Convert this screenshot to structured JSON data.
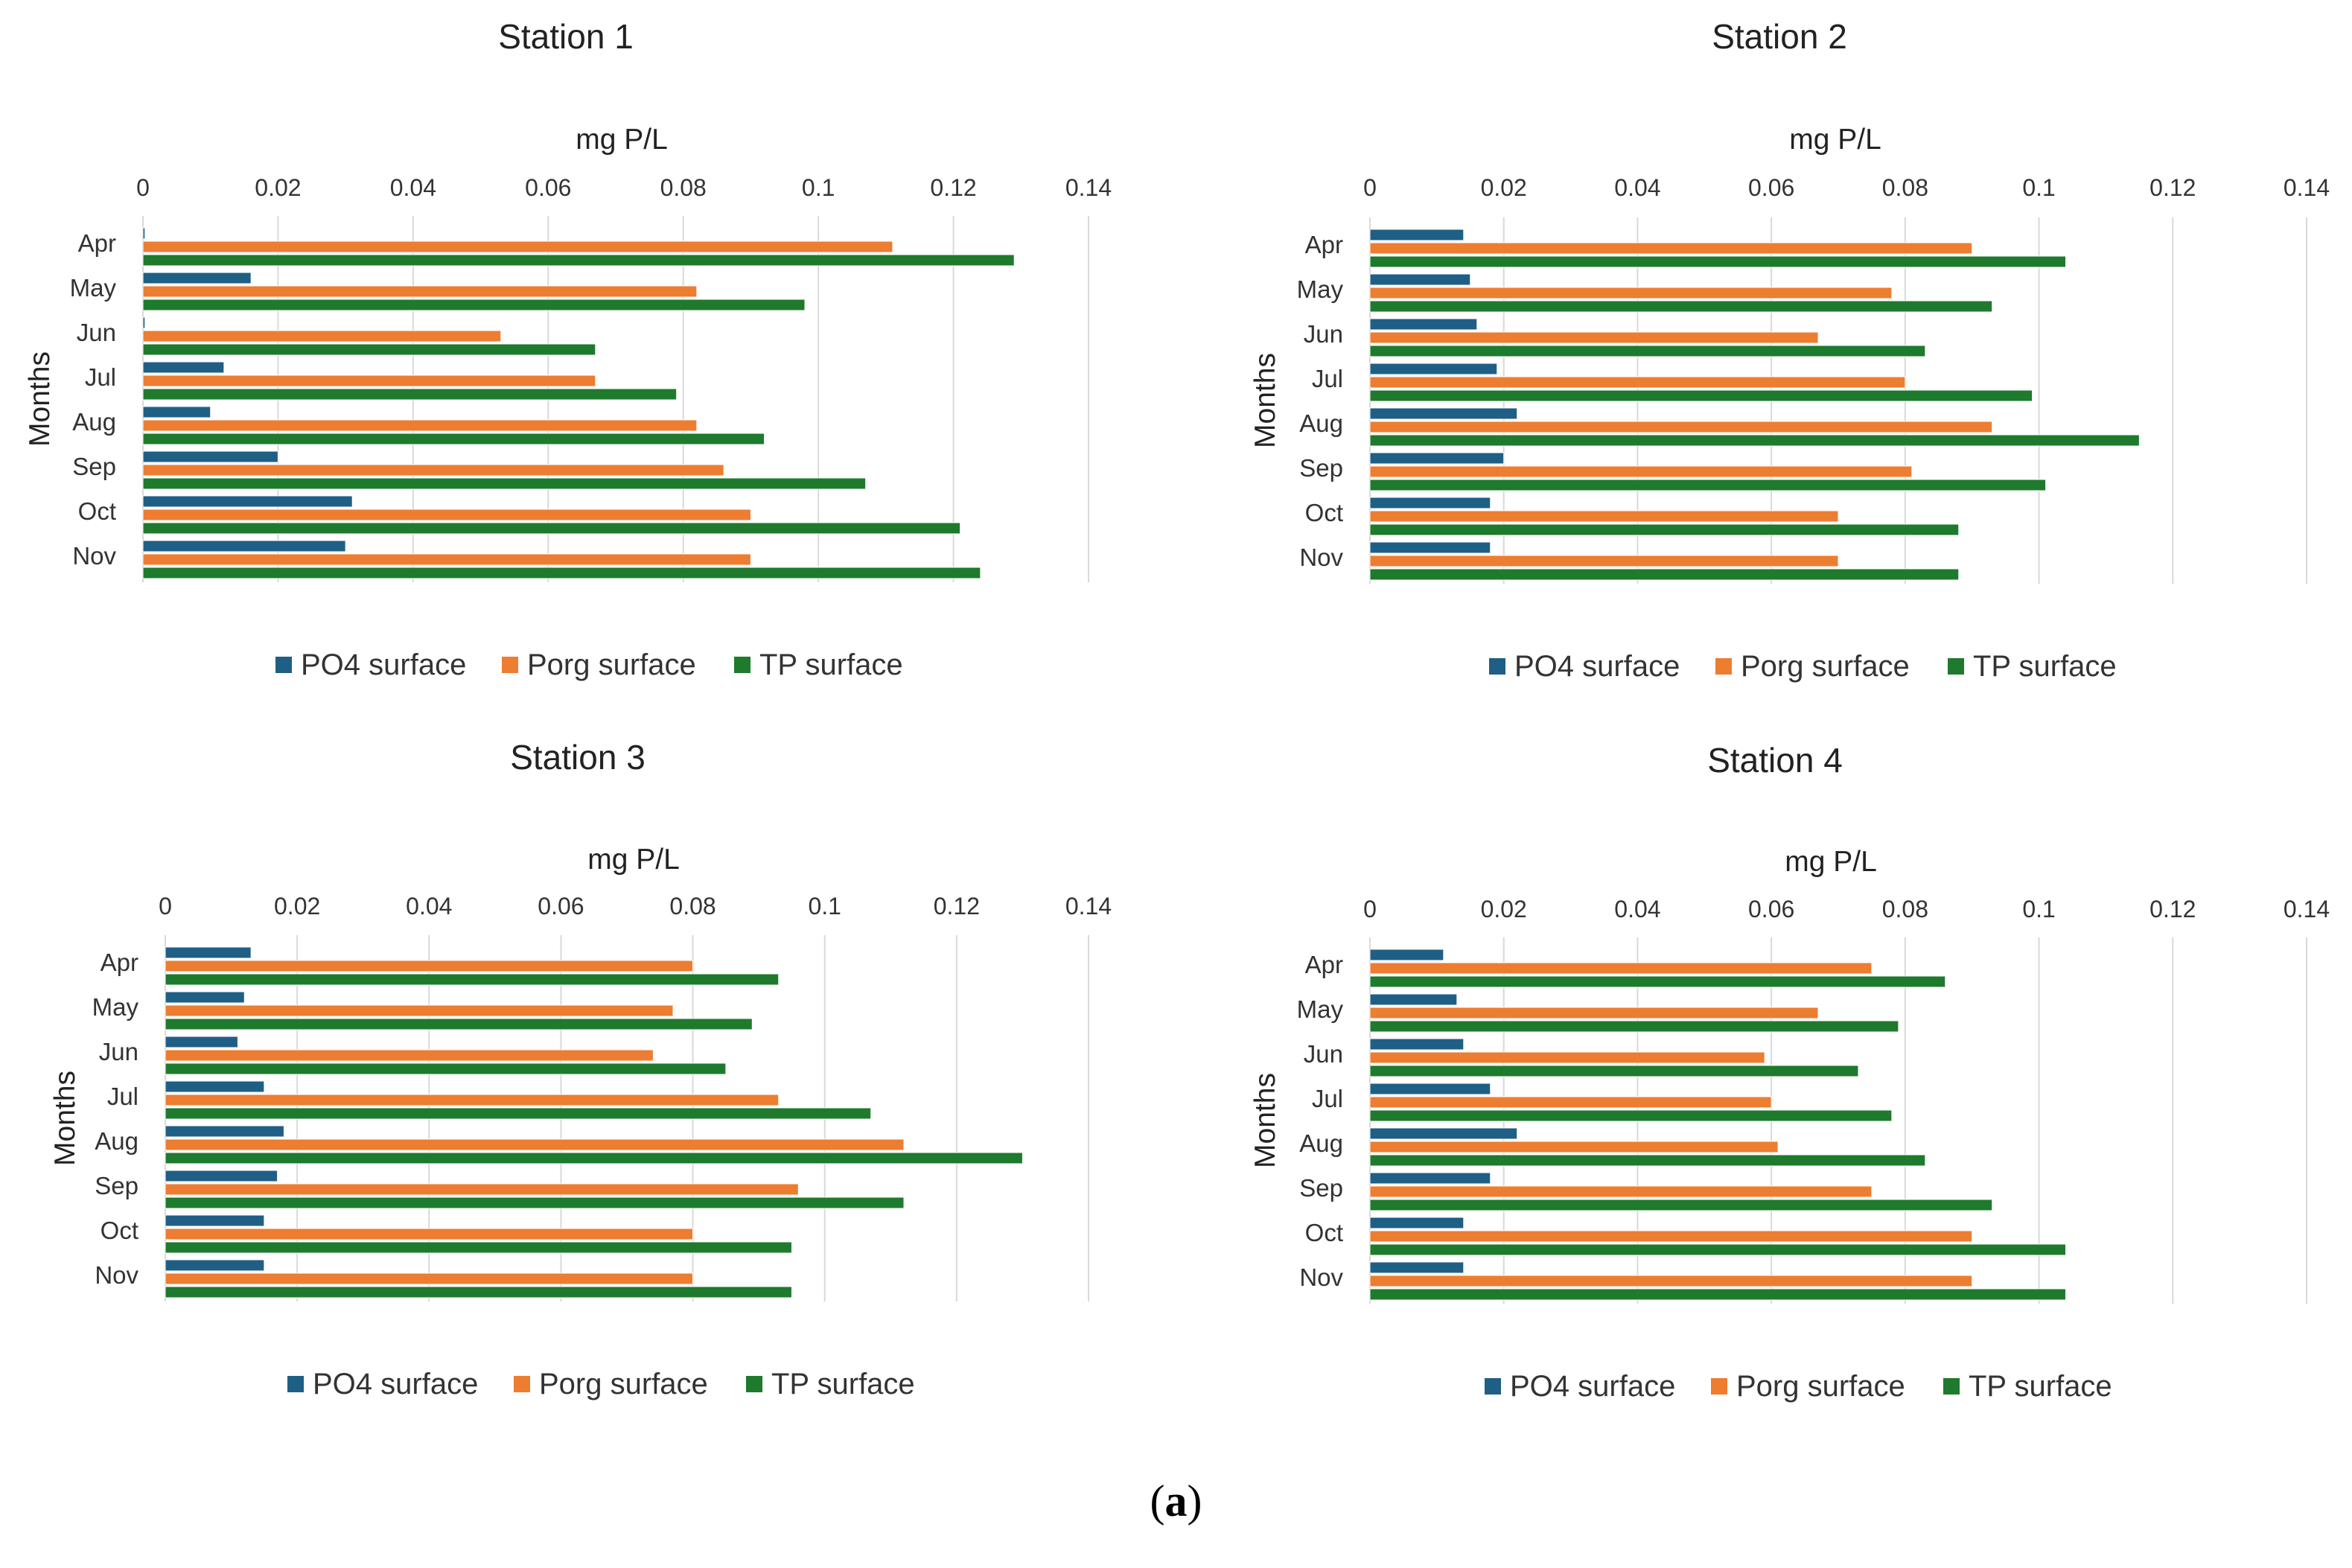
{
  "figure_label": "a",
  "chart_data": [
    {
      "type": "bar",
      "orientation": "horizontal",
      "title": "Station 1",
      "xlabel": "mg P/L",
      "ylabel": "Months",
      "xlim": [
        0,
        0.14
      ],
      "xticks": [
        "0",
        "0.02",
        "0.04",
        "0.06",
        "0.08",
        "0.1",
        "0.12",
        "0.14"
      ],
      "categories": [
        "Apr",
        "May",
        "Jun",
        "Jul",
        "Aug",
        "Sep",
        "Oct",
        "Nov"
      ],
      "series": [
        {
          "name": "PO4 surface",
          "color": "#1f5f86",
          "values": [
            0.0003,
            0.016,
            0.0003,
            0.012,
            0.01,
            0.02,
            0.031,
            0.03
          ]
        },
        {
          "name": "Porg surface",
          "color": "#ed7d31",
          "values": [
            0.111,
            0.082,
            0.053,
            0.067,
            0.082,
            0.086,
            0.09,
            0.09
          ]
        },
        {
          "name": "TP surface",
          "color": "#1e7a2c",
          "values": [
            0.129,
            0.098,
            0.067,
            0.079,
            0.092,
            0.107,
            0.121,
            0.124
          ]
        }
      ],
      "legend": "bottom"
    },
    {
      "type": "bar",
      "orientation": "horizontal",
      "title": "Station 2",
      "xlabel": "mg P/L",
      "ylabel": "Months",
      "xlim": [
        0,
        0.14
      ],
      "xticks": [
        "0",
        "0.02",
        "0.04",
        "0.06",
        "0.08",
        "0.1",
        "0.12",
        "0.14"
      ],
      "categories": [
        "Apr",
        "May",
        "Jun",
        "Jul",
        "Aug",
        "Sep",
        "Oct",
        "Nov"
      ],
      "series": [
        {
          "name": "PO4 surface",
          "color": "#1f5f86",
          "values": [
            0.014,
            0.015,
            0.016,
            0.019,
            0.022,
            0.02,
            0.018,
            0.018
          ]
        },
        {
          "name": "Porg surface",
          "color": "#ed7d31",
          "values": [
            0.09,
            0.078,
            0.067,
            0.08,
            0.093,
            0.081,
            0.07,
            0.07
          ]
        },
        {
          "name": "TP surface",
          "color": "#1e7a2c",
          "values": [
            0.104,
            0.093,
            0.083,
            0.099,
            0.115,
            0.101,
            0.088,
            0.088
          ]
        }
      ],
      "legend": "bottom"
    },
    {
      "type": "bar",
      "orientation": "horizontal",
      "title": "Station 3",
      "xlabel": "mg P/L",
      "ylabel": "Months",
      "xlim": [
        0,
        0.14
      ],
      "xticks": [
        "0",
        "0.02",
        "0.04",
        "0.06",
        "0.08",
        "0.1",
        "0.12",
        "0.14"
      ],
      "categories": [
        "Apr",
        "May",
        "Jun",
        "Jul",
        "Aug",
        "Sep",
        "Oct",
        "Nov"
      ],
      "series": [
        {
          "name": "PO4 surface",
          "color": "#1f5f86",
          "values": [
            0.013,
            0.012,
            0.011,
            0.015,
            0.018,
            0.017,
            0.015,
            0.015
          ]
        },
        {
          "name": "Porg surface",
          "color": "#ed7d31",
          "values": [
            0.08,
            0.077,
            0.074,
            0.093,
            0.112,
            0.096,
            0.08,
            0.08
          ]
        },
        {
          "name": "TP surface",
          "color": "#1e7a2c",
          "values": [
            0.093,
            0.089,
            0.085,
            0.107,
            0.13,
            0.112,
            0.095,
            0.095
          ]
        }
      ],
      "legend": "bottom"
    },
    {
      "type": "bar",
      "orientation": "horizontal",
      "title": "Station 4",
      "xlabel": "mg P/L",
      "ylabel": "Months",
      "xlim": [
        0,
        0.14
      ],
      "xticks": [
        "0",
        "0.02",
        "0.04",
        "0.06",
        "0.08",
        "0.1",
        "0.12",
        "0.14"
      ],
      "categories": [
        "Apr",
        "May",
        "Jun",
        "Jul",
        "Aug",
        "Sep",
        "Oct",
        "Nov"
      ],
      "series": [
        {
          "name": "PO4 surface",
          "color": "#1f5f86",
          "values": [
            0.011,
            0.013,
            0.014,
            0.018,
            0.022,
            0.018,
            0.014,
            0.014
          ]
        },
        {
          "name": "Porg surface",
          "color": "#ed7d31",
          "values": [
            0.075,
            0.067,
            0.059,
            0.06,
            0.061,
            0.075,
            0.09,
            0.09
          ]
        },
        {
          "name": "TP surface",
          "color": "#1e7a2c",
          "values": [
            0.086,
            0.079,
            0.073,
            0.078,
            0.083,
            0.093,
            0.104,
            0.104
          ]
        }
      ],
      "legend": "bottom"
    }
  ]
}
